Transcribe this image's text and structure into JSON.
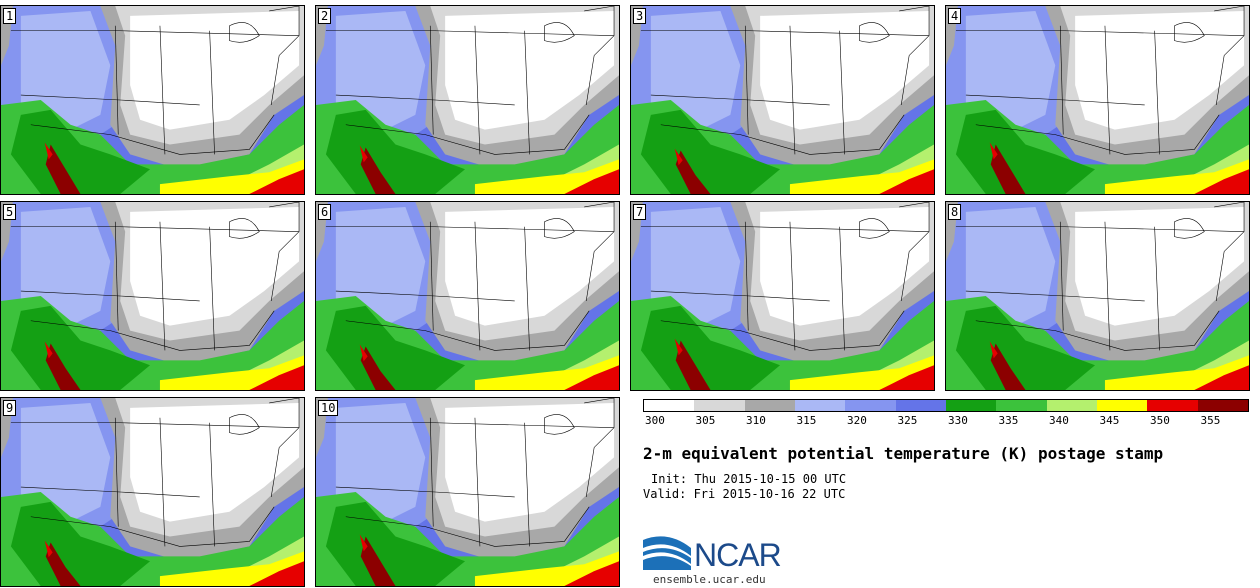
{
  "panels": [
    {
      "label": "1"
    },
    {
      "label": "2"
    },
    {
      "label": "3"
    },
    {
      "label": "4"
    },
    {
      "label": "5"
    },
    {
      "label": "6"
    },
    {
      "label": "7"
    },
    {
      "label": "8"
    },
    {
      "label": "9"
    },
    {
      "label": "10"
    }
  ],
  "colorbar": {
    "colors": [
      "#ffffff",
      "#d8d8d8",
      "#a8a8a8",
      "#aab8f5",
      "#8595f0",
      "#6474e8",
      "#14a014",
      "#3cc23c",
      "#b4f06e",
      "#ffff00",
      "#e60000",
      "#8c0000"
    ],
    "labels": [
      "300",
      "305",
      "310",
      "315",
      "320",
      "325",
      "330",
      "335",
      "340",
      "345",
      "350",
      "355"
    ]
  },
  "title": "2-m equivalent potential temperature (K) postage stamp",
  "init": "Init: Thu 2015-10-15 00 UTC",
  "valid": "Valid: Fri 2015-10-16 22 UTC",
  "logo": {
    "text": "NCAR",
    "color": "#1c4a8a"
  },
  "url": "ensemble.ucar.edu"
}
